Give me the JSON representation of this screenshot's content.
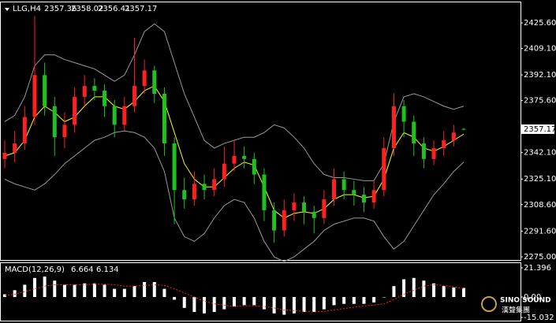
{
  "chart_data": [
    {
      "type": "candlestick",
      "title": "LLG,H4",
      "up_color": "#ff2020",
      "down_color": "#20c020",
      "open": [
        2338,
        2342,
        2348,
        2365,
        2392,
        2372,
        2352,
        2360,
        2378,
        2385,
        2382,
        2372,
        2360,
        2372,
        2385,
        2395,
        2380,
        2348,
        2318,
        2312,
        2322,
        2318,
        2325,
        2335,
        2340,
        2338,
        2328,
        2305,
        2292,
        2305,
        2310,
        2304,
        2300,
        2312,
        2325,
        2318,
        2315,
        2310,
        2318,
        2345,
        2372,
        2362,
        2348,
        2338,
        2345,
        2350,
        2357.36
      ],
      "high": [
        2350,
        2356,
        2372,
        2430,
        2400,
        2378,
        2368,
        2384,
        2392,
        2390,
        2386,
        2376,
        2378,
        2416,
        2402,
        2398,
        2384,
        2352,
        2326,
        2330,
        2328,
        2332,
        2346,
        2350,
        2346,
        2342,
        2332,
        2310,
        2312,
        2316,
        2314,
        2308,
        2318,
        2332,
        2330,
        2324,
        2320,
        2324,
        2352,
        2380,
        2376,
        2366,
        2352,
        2350,
        2356,
        2360,
        2358.02
      ],
      "low": [
        2332,
        2336,
        2344,
        2360,
        2366,
        2340,
        2345,
        2355,
        2372,
        2376,
        2365,
        2352,
        2356,
        2368,
        2380,
        2374,
        2340,
        2296,
        2306,
        2308,
        2312,
        2314,
        2320,
        2330,
        2332,
        2322,
        2298,
        2284,
        2288,
        2298,
        2296,
        2290,
        2296,
        2308,
        2312,
        2308,
        2304,
        2306,
        2314,
        2340,
        2352,
        2340,
        2332,
        2334,
        2340,
        2346,
        2356.41
      ],
      "close": [
        2342,
        2348,
        2365,
        2392,
        2372,
        2352,
        2360,
        2378,
        2385,
        2382,
        2372,
        2360,
        2372,
        2385,
        2395,
        2380,
        2348,
        2318,
        2312,
        2322,
        2318,
        2325,
        2335,
        2340,
        2338,
        2328,
        2305,
        2292,
        2305,
        2310,
        2304,
        2300,
        2312,
        2325,
        2318,
        2315,
        2310,
        2318,
        2345,
        2372,
        2362,
        2348,
        2338,
        2345,
        2350,
        2355,
        2357.17
      ],
      "overlays": [
        {
          "color": "#9a9a9a",
          "values": [
            2362,
            2366,
            2378,
            2398,
            2405,
            2405,
            2402,
            2400,
            2398,
            2396,
            2392,
            2388,
            2392,
            2405,
            2420,
            2425,
            2420,
            2400,
            2380,
            2365,
            2350,
            2345,
            2348,
            2350,
            2352,
            2352,
            2355,
            2360,
            2358,
            2352,
            2345,
            2335,
            2328,
            2326,
            2326,
            2325,
            2324,
            2324,
            2335,
            2362,
            2378,
            2380,
            2378,
            2375,
            2372,
            2370,
            2372
          ]
        },
        {
          "color": "#9a9a9a",
          "values": [
            2325,
            2322,
            2320,
            2318,
            2322,
            2328,
            2335,
            2340,
            2345,
            2350,
            2352,
            2355,
            2356,
            2355,
            2352,
            2345,
            2330,
            2300,
            2288,
            2285,
            2290,
            2300,
            2308,
            2312,
            2310,
            2300,
            2285,
            2275,
            2272,
            2275,
            2280,
            2285,
            2292,
            2296,
            2298,
            2300,
            2300,
            2298,
            2288,
            2280,
            2285,
            2295,
            2305,
            2315,
            2322,
            2330,
            2336
          ]
        },
        {
          "color": "#ffff00",
          "values": [
            2340,
            2342,
            2350,
            2365,
            2372,
            2368,
            2362,
            2365,
            2372,
            2378,
            2378,
            2372,
            2370,
            2375,
            2382,
            2385,
            2375,
            2355,
            2335,
            2325,
            2320,
            2320,
            2326,
            2332,
            2336,
            2334,
            2320,
            2305,
            2300,
            2303,
            2304,
            2303,
            2306,
            2312,
            2315,
            2315,
            2313,
            2314,
            2325,
            2345,
            2355,
            2352,
            2345,
            2343,
            2346,
            2350,
            2354
          ]
        }
      ],
      "ylim": [
        2273,
        2438.8
      ],
      "yticks": [
        {
          "value": 2425.6,
          "label": "2425.60"
        },
        {
          "value": 2409.1,
          "label": "2409.10"
        },
        {
          "value": 2392.1,
          "label": "2392.10"
        },
        {
          "value": 2375.6,
          "label": "2375.60"
        },
        {
          "value": 2342.1,
          "label": "2342.10"
        },
        {
          "value": 2325.1,
          "label": "2325.10"
        },
        {
          "value": 2308.6,
          "label": "2308.60"
        },
        {
          "value": 2291.6,
          "label": "2291.60"
        },
        {
          "value": 2275,
          "label": "2275.00"
        }
      ]
    },
    {
      "type": "macd",
      "title": "MACD(12,26,9)",
      "color": "#ffffff",
      "signal_color": "#ff2020",
      "values": [
        2,
        5,
        9,
        14,
        15,
        12,
        9,
        9,
        10,
        10,
        9,
        6,
        6,
        8,
        11,
        11,
        6,
        -2,
        -8,
        -11,
        -12,
        -11,
        -9,
        -7,
        -6,
        -6,
        -9,
        -12,
        -13,
        -12,
        -11,
        -11,
        -9,
        -6,
        -5,
        -5,
        -5,
        -4,
        0,
        8,
        13,
        14,
        12,
        10,
        8,
        7,
        6.664
      ],
      "signal": [
        1,
        2,
        4,
        6,
        8,
        9,
        9,
        9,
        9,
        9.5,
        9.5,
        9,
        8,
        8,
        8.5,
        9,
        8.5,
        6,
        3,
        0,
        -3,
        -5,
        -6,
        -7,
        -6.5,
        -6.5,
        -7,
        -8,
        -9.5,
        -10,
        -10.5,
        -11,
        -10.5,
        -9.5,
        -8.5,
        -7.5,
        -6.5,
        -6,
        -5,
        -2,
        2,
        5,
        8,
        9,
        8.5,
        7.5,
        6.134
      ],
      "ylim": [
        -17.34,
        24.86
      ],
      "yticks": [
        21.396,
        {
          "value": 0,
          "label": "0.00"
        },
        -15.032
      ]
    }
  ],
  "watermark": {
    "brand": "SINO SOUND",
    "chinese": "漢聲集團"
  }
}
